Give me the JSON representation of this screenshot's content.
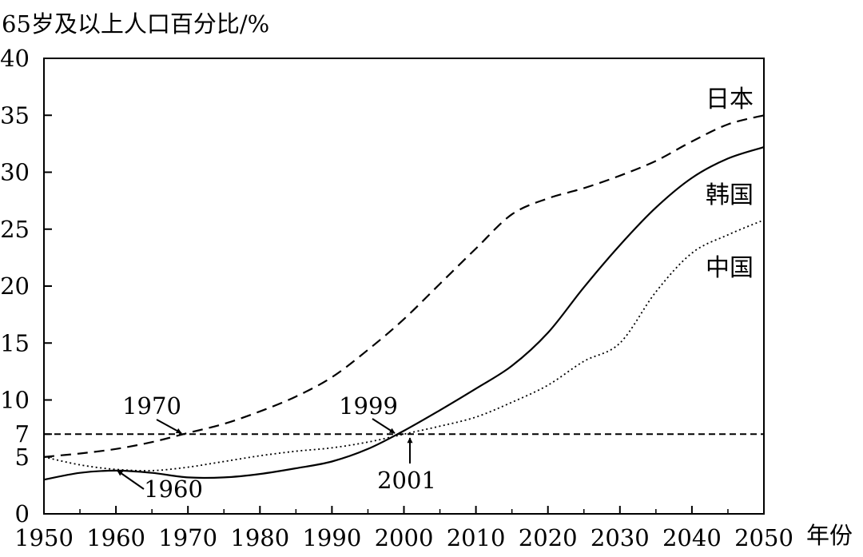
{
  "chart_data": {
    "type": "line",
    "ylabel": "65岁及以上人口百分比/%",
    "xlabel": "年份",
    "xlim": [
      1950,
      2050
    ],
    "ylim": [
      0,
      40
    ],
    "xticks": [
      1950,
      1960,
      1970,
      1980,
      1990,
      2000,
      2010,
      2020,
      2030,
      2040,
      2050
    ],
    "yticks": [
      0,
      5,
      7,
      10,
      15,
      20,
      25,
      30,
      35,
      40
    ],
    "grid": false,
    "reference_line": {
      "y": 7,
      "style": "dashed"
    },
    "series": [
      {
        "name": "日本",
        "style": "dashed",
        "x": [
          1950,
          1955,
          1960,
          1965,
          1970,
          1975,
          1980,
          1985,
          1990,
          1995,
          2000,
          2005,
          2010,
          2015,
          2020,
          2025,
          2030,
          2035,
          2040,
          2045,
          2050
        ],
        "y": [
          5.0,
          5.3,
          5.7,
          6.3,
          7.1,
          7.9,
          9.0,
          10.3,
          12.0,
          14.4,
          17.1,
          20.2,
          23.3,
          26.3,
          27.7,
          28.6,
          29.7,
          31.0,
          32.7,
          34.2,
          35.0
        ]
      },
      {
        "name": "韩国",
        "style": "solid",
        "x": [
          1950,
          1955,
          1960,
          1965,
          1970,
          1975,
          1980,
          1985,
          1990,
          1995,
          2000,
          2005,
          2010,
          2015,
          2020,
          2025,
          2030,
          2035,
          2040,
          2045,
          2050
        ],
        "y": [
          3.0,
          3.6,
          3.8,
          3.6,
          3.2,
          3.2,
          3.5,
          4.0,
          4.6,
          5.7,
          7.3,
          9.1,
          11.0,
          13.0,
          15.9,
          19.9,
          23.6,
          26.9,
          29.5,
          31.2,
          32.2
        ]
      },
      {
        "name": "中国",
        "style": "dotted",
        "x": [
          1950,
          1955,
          1960,
          1965,
          1970,
          1975,
          1980,
          1985,
          1990,
          1995,
          2000,
          2005,
          2010,
          2015,
          2020,
          2025,
          2030,
          2035,
          2040,
          2045,
          2050
        ],
        "y": [
          5.0,
          4.3,
          3.9,
          3.8,
          4.1,
          4.6,
          5.1,
          5.5,
          5.8,
          6.3,
          7.0,
          7.7,
          8.5,
          9.8,
          11.3,
          13.4,
          15.0,
          19.5,
          22.9,
          24.5,
          25.8
        ]
      }
    ],
    "annotations": [
      {
        "text": "1970",
        "x": 1970,
        "y": 7
      },
      {
        "text": "1999",
        "x": 1999,
        "y": 7
      },
      {
        "text": "2001",
        "x": 2001,
        "y": 7
      },
      {
        "text": "1960",
        "x": 1960,
        "y": 3.8
      }
    ]
  }
}
